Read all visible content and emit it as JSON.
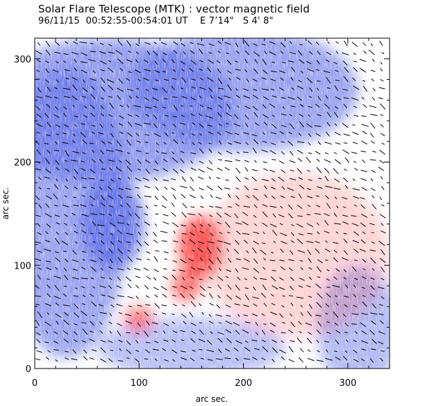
{
  "title": "Solar Flare Telescope (MTK) : vector magnetic field",
  "subtitle": {
    "datetime": "96/11/15  00:52:55-00:54:01 UT",
    "longitude": "E 7’14\"",
    "latitude": "S 4' 8\""
  },
  "chart_data": {
    "type": "heatmap",
    "xlabel": "arc sec.",
    "ylabel": "arc sec.",
    "xlim": [
      0,
      340
    ],
    "ylim": [
      0,
      320
    ],
    "x_ticks": [
      0,
      100,
      200,
      300
    ],
    "y_ticks": [
      0,
      100,
      200,
      300
    ],
    "colors": {
      "negative_polarity": "#5a6be8",
      "positive_polarity": "#ff3b3b",
      "background": "#ffffff",
      "vectors": "#000000"
    },
    "regions": [
      {
        "polarity": "negative",
        "x": 70,
        "y": 250,
        "rx": 120,
        "ry": 70,
        "strength": 0.75
      },
      {
        "polarity": "negative",
        "x": 200,
        "y": 270,
        "rx": 110,
        "ry": 60,
        "strength": 0.7
      },
      {
        "polarity": "negative",
        "x": 30,
        "y": 150,
        "rx": 60,
        "ry": 140,
        "strength": 0.7
      },
      {
        "polarity": "negative",
        "x": 75,
        "y": 140,
        "rx": 30,
        "ry": 45,
        "strength": 0.95
      },
      {
        "polarity": "negative",
        "x": 310,
        "y": 40,
        "rx": 40,
        "ry": 60,
        "strength": 0.55
      },
      {
        "polarity": "negative",
        "x": 150,
        "y": 20,
        "rx": 90,
        "ry": 30,
        "strength": 0.5
      },
      {
        "polarity": "positive",
        "x": 158,
        "y": 118,
        "rx": 20,
        "ry": 30,
        "strength": 1.0
      },
      {
        "polarity": "positive",
        "x": 145,
        "y": 80,
        "rx": 14,
        "ry": 15,
        "strength": 0.85
      },
      {
        "polarity": "positive",
        "x": 100,
        "y": 48,
        "rx": 14,
        "ry": 12,
        "strength": 0.8
      },
      {
        "polarity": "positive",
        "x": 250,
        "y": 110,
        "rx": 90,
        "ry": 80,
        "strength": 0.25
      }
    ]
  }
}
